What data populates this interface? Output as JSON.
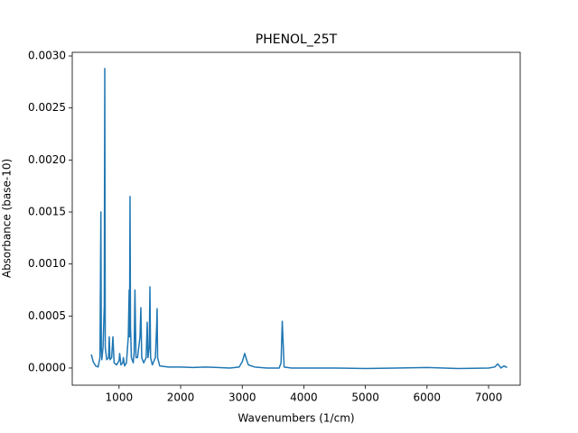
{
  "chart_data": {
    "type": "line",
    "title": "PHENOL_25T",
    "x_label": "Wavenumbers (1/cm)",
    "y_label": "Absorbance (base-10)",
    "x": [
      550,
      580,
      620,
      660,
      690,
      705,
      712,
      720,
      740,
      760,
      768,
      776,
      800,
      830,
      841,
      852,
      880,
      900,
      920,
      960,
      1000,
      1010,
      1030,
      1060,
      1070,
      1090,
      1120,
      1150,
      1164,
      1170,
      1178,
      1186,
      1200,
      1230,
      1245,
      1252,
      1258,
      1275,
      1300,
      1340,
      1354,
      1368,
      1400,
      1440,
      1457,
      1470,
      1490,
      1501,
      1512,
      1540,
      1590,
      1610,
      1618,
      1626,
      1660,
      1800,
      2000,
      2200,
      2400,
      2600,
      2800,
      2950,
      3000,
      3040,
      3070,
      3100,
      3200,
      3400,
      3600,
      3630,
      3650,
      3660,
      3680,
      3800,
      4000,
      4500,
      5000,
      5500,
      6000,
      6500,
      7000,
      7100,
      7150,
      7200,
      7250,
      7300
    ],
    "series": [
      {
        "color": "#1f77b4",
        "values": [
          0.00013,
          6e-05,
          2e-05,
          1e-05,
          0.0001,
          0.0015,
          0.0002,
          8e-05,
          0.0002,
          0.0006,
          0.00288,
          0.0002,
          8e-05,
          0.0001,
          0.0003,
          8e-05,
          0.0001,
          0.0003,
          5e-05,
          3e-05,
          7e-05,
          0.00014,
          3e-05,
          5e-05,
          0.0001,
          2e-05,
          5e-05,
          0.0003,
          0.00075,
          0.0003,
          0.00165,
          0.0004,
          0.0001,
          5e-05,
          0.00015,
          0.0005,
          0.00075,
          0.0001,
          0.0001,
          0.0003,
          0.00058,
          0.0001,
          5e-05,
          0.0001,
          0.00044,
          0.0001,
          0.0002,
          0.00078,
          0.0001,
          3e-05,
          0.0001,
          0.0004,
          0.00057,
          0.0001,
          2e-05,
          1e-05,
          1e-05,
          5e-06,
          1e-05,
          5e-06,
          0,
          1e-05,
          6e-05,
          0.00014,
          8e-05,
          3e-05,
          1e-05,
          0,
          0,
          5e-05,
          0.00045,
          0.0003,
          1e-05,
          0,
          0,
          0,
          -5e-06,
          0,
          5e-06,
          -5e-06,
          0,
          1e-05,
          4e-05,
          0,
          2e-05,
          5e-06
        ]
      }
    ],
    "xlim": [
      240,
      7513
    ],
    "xticks": [
      1000,
      2000,
      3000,
      4000,
      5000,
      6000,
      7000
    ],
    "ylim": [
      -0.000165,
      0.003035
    ],
    "yticks": [
      {
        "value": 0,
        "label": "0.0000"
      },
      {
        "value": 0.0005,
        "label": "0.0005"
      },
      {
        "value": 0.001,
        "label": "0.0010"
      },
      {
        "value": 0.0015,
        "label": "0.0015"
      },
      {
        "value": 0.002,
        "label": "0.0020"
      },
      {
        "value": 0.0025,
        "label": "0.0025"
      },
      {
        "value": 0.003,
        "label": "0.0030"
      }
    ]
  }
}
